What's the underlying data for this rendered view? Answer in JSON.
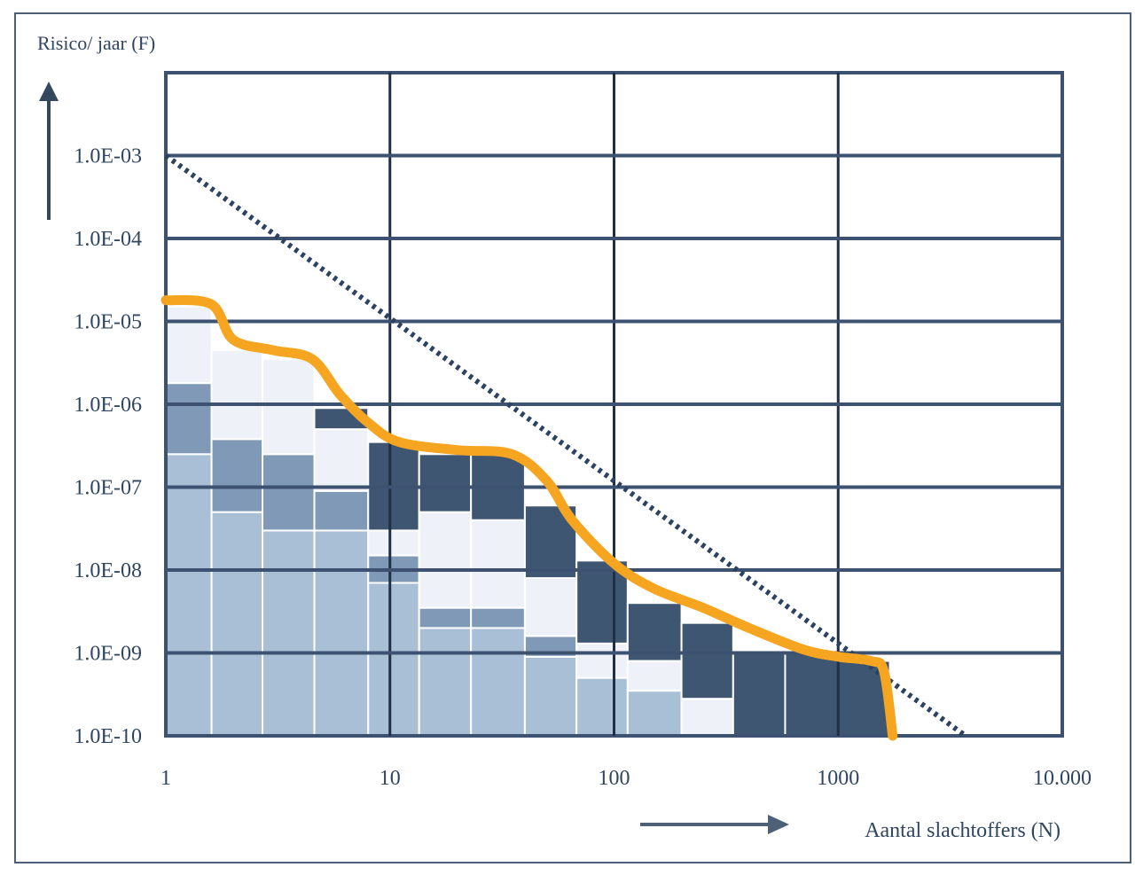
{
  "chart_data": {
    "type": "bar",
    "x_scale": "log",
    "y_scale": "log",
    "ylabel": "Risico/ jaar (F)",
    "xlabel": "Aantal slachtoffers (N)",
    "x_ticks": [
      "1",
      "10",
      "100",
      "1000",
      "10.000"
    ],
    "y_ticks": [
      "1.0E-03",
      "1.0E-04",
      "1.0E-05",
      "1.0E-06",
      "1.0E-07",
      "1.0E-08",
      "1.0E-09",
      "1.0E-10"
    ],
    "xlim": [
      1,
      10000
    ],
    "ylim": [
      1e-10,
      0.01
    ],
    "grid": true,
    "colors": {
      "light_blue": "#a9bfd6",
      "mid_blue": "#7f99b7",
      "pale": "#eef2f8",
      "dark_navy": "#3f5672",
      "orange_curve": "#f5a51f",
      "grid": "#3d5270",
      "norm_line": "#2c4260"
    },
    "bar_stacks": [
      {
        "x0": 1.0,
        "x1": 1.6,
        "layers": [
          {
            "tone": "light_blue",
            "top": 2.5e-07
          },
          {
            "tone": "mid_blue",
            "top": 1.8e-06
          },
          {
            "tone": "pale",
            "top": 1.5e-05
          }
        ]
      },
      {
        "x0": 1.6,
        "x1": 2.7,
        "layers": [
          {
            "tone": "light_blue",
            "top": 5e-08
          },
          {
            "tone": "mid_blue",
            "top": 3.8e-07
          },
          {
            "tone": "pale",
            "top": 4.5e-06
          }
        ]
      },
      {
        "x0": 2.7,
        "x1": 4.6,
        "layers": [
          {
            "tone": "light_blue",
            "top": 3e-08
          },
          {
            "tone": "mid_blue",
            "top": 2.5e-07
          },
          {
            "tone": "pale",
            "top": 3.5e-06
          }
        ]
      },
      {
        "x0": 4.6,
        "x1": 8.0,
        "layers": [
          {
            "tone": "light_blue",
            "top": 3e-08
          },
          {
            "tone": "mid_blue",
            "top": 9e-08
          },
          {
            "tone": "pale",
            "top": 5e-07
          },
          {
            "tone": "dark_navy",
            "top": 9e-07
          }
        ]
      },
      {
        "x0": 8.0,
        "x1": 13.5,
        "layers": [
          {
            "tone": "light_blue",
            "top": 7e-09
          },
          {
            "tone": "mid_blue",
            "top": 1.5e-08
          },
          {
            "tone": "pale",
            "top": 3e-08
          },
          {
            "tone": "dark_navy",
            "top": 3.5e-07
          }
        ]
      },
      {
        "x0": 13.5,
        "x1": 23,
        "layers": [
          {
            "tone": "light_blue",
            "top": 2e-09
          },
          {
            "tone": "mid_blue",
            "top": 3.5e-09
          },
          {
            "tone": "pale",
            "top": 5e-08
          },
          {
            "tone": "dark_navy",
            "top": 2.5e-07
          }
        ]
      },
      {
        "x0": 23,
        "x1": 40,
        "layers": [
          {
            "tone": "light_blue",
            "top": 2e-09
          },
          {
            "tone": "mid_blue",
            "top": 3.5e-09
          },
          {
            "tone": "pale",
            "top": 4e-08
          },
          {
            "tone": "dark_navy",
            "top": 2.5e-07
          }
        ]
      },
      {
        "x0": 40,
        "x1": 68,
        "layers": [
          {
            "tone": "light_blue",
            "top": 9e-10
          },
          {
            "tone": "mid_blue",
            "top": 1.6e-09
          },
          {
            "tone": "pale",
            "top": 8e-09
          },
          {
            "tone": "dark_navy",
            "top": 6e-08
          }
        ]
      },
      {
        "x0": 68,
        "x1": 115,
        "layers": [
          {
            "tone": "light_blue",
            "top": 5e-10
          },
          {
            "tone": "pale",
            "top": 1.3e-09
          },
          {
            "tone": "dark_navy",
            "top": 1.3e-08
          }
        ]
      },
      {
        "x0": 115,
        "x1": 200,
        "layers": [
          {
            "tone": "light_blue",
            "top": 3.5e-10
          },
          {
            "tone": "pale",
            "top": 8e-10
          },
          {
            "tone": "dark_navy",
            "top": 4e-09
          }
        ]
      },
      {
        "x0": 200,
        "x1": 340,
        "layers": [
          {
            "tone": "pale",
            "top": 2.8e-10
          },
          {
            "tone": "dark_navy",
            "top": 2.3e-09
          }
        ]
      },
      {
        "x0": 340,
        "x1": 580,
        "layers": [
          {
            "tone": "dark_navy",
            "top": 1e-09
          }
        ]
      },
      {
        "x0": 580,
        "x1": 1000,
        "layers": [
          {
            "tone": "dark_navy",
            "top": 1e-09
          }
        ]
      },
      {
        "x0": 1000,
        "x1": 1700,
        "layers": [
          {
            "tone": "dark_navy",
            "top": 8e-10
          }
        ]
      }
    ],
    "fn_curve": [
      {
        "x": 1.0,
        "y": 1.8e-05
      },
      {
        "x": 1.6,
        "y": 1.6e-05
      },
      {
        "x": 2.0,
        "y": 6e-06
      },
      {
        "x": 3.0,
        "y": 4.5e-06
      },
      {
        "x": 4.5,
        "y": 3.5e-06
      },
      {
        "x": 6.0,
        "y": 1.3e-06
      },
      {
        "x": 8.0,
        "y": 6e-07
      },
      {
        "x": 11,
        "y": 3.5e-07
      },
      {
        "x": 20,
        "y": 2.8e-07
      },
      {
        "x": 35,
        "y": 2.5e-07
      },
      {
        "x": 50,
        "y": 1.2e-07
      },
      {
        "x": 65,
        "y": 4e-08
      },
      {
        "x": 100,
        "y": 1.2e-08
      },
      {
        "x": 150,
        "y": 6e-09
      },
      {
        "x": 250,
        "y": 3.5e-09
      },
      {
        "x": 400,
        "y": 2e-09
      },
      {
        "x": 700,
        "y": 1.1e-09
      },
      {
        "x": 1000,
        "y": 9e-10
      },
      {
        "x": 1400,
        "y": 8e-10
      },
      {
        "x": 1600,
        "y": 6e-10
      },
      {
        "x": 1750,
        "y": 1e-10
      }
    ],
    "norm_line": [
      {
        "x": 1,
        "y": 0.001
      },
      {
        "x": 3700,
        "y": 1e-10
      }
    ]
  }
}
